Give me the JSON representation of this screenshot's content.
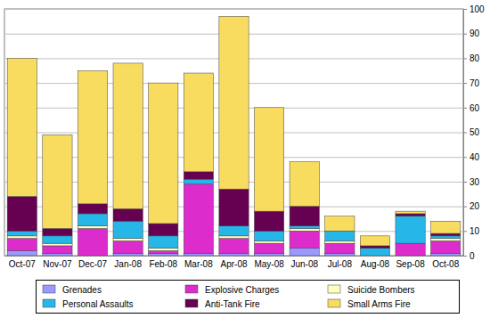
{
  "chart_data": {
    "type": "bar",
    "stacked": true,
    "grid": true,
    "legend": "bottom",
    "categories": [
      "Oct-07",
      "Nov-07",
      "Dec-07",
      "Jan-08",
      "Feb-08",
      "Mar-08",
      "Apr-08",
      "May-08",
      "Jun-08",
      "Jul-08",
      "Aug-08",
      "Sep-08",
      "Oct-08"
    ],
    "series": [
      {
        "name": "Grenades",
        "color": "#9999ff",
        "values": [
          2,
          1,
          0,
          1,
          1,
          1,
          1,
          1,
          3,
          1,
          0,
          0,
          1
        ]
      },
      {
        "name": "Explosive Charges",
        "color": "#dd2ccc",
        "values": [
          5,
          3,
          11,
          5,
          1,
          28,
          6,
          4,
          7,
          4,
          0,
          5,
          5
        ]
      },
      {
        "name": "Suicide Bombers",
        "color": "#ffffc0",
        "values": [
          1,
          1,
          1,
          1,
          1,
          0,
          1,
          1,
          1,
          1,
          0,
          0,
          1
        ]
      },
      {
        "name": "Personal Assaults",
        "color": "#26b6e8",
        "values": [
          2,
          3,
          5,
          7,
          5,
          2,
          4,
          4,
          1,
          4,
          3,
          11,
          1
        ]
      },
      {
        "name": "Anti-Tank Fire",
        "color": "#660050",
        "values": [
          14,
          3,
          4,
          5,
          5,
          3,
          15,
          8,
          8,
          0,
          1,
          1,
          1
        ]
      },
      {
        "name": "Small Arms Fire",
        "color": "#f8dc60",
        "values": [
          56,
          38,
          54,
          59,
          57,
          40,
          70,
          42,
          18,
          6,
          4,
          1,
          5
        ]
      }
    ],
    "ylim": [
      0,
      100
    ],
    "yticks": [
      0,
      10,
      20,
      30,
      40,
      50,
      60,
      70,
      80,
      90,
      100
    ]
  }
}
